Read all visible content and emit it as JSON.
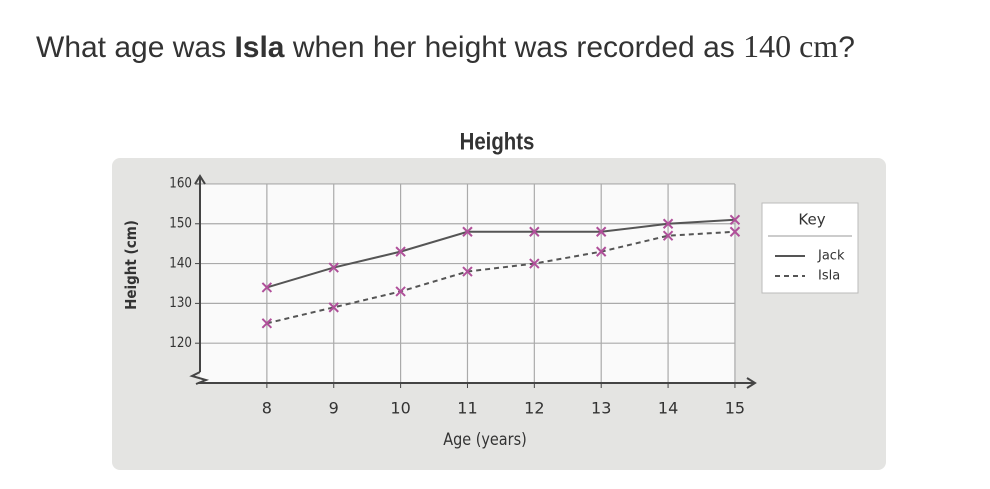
{
  "question": {
    "before": "What age was ",
    "name": "Isla",
    "after": " when her height was recorded as ",
    "math": "140 cm",
    "end": "?"
  },
  "chart_data": {
    "type": "line",
    "title": "Heights",
    "x_label": "Age (years)",
    "y_label": "Height (cm)",
    "x": [
      8,
      9,
      10,
      11,
      12,
      13,
      14,
      15
    ],
    "series": [
      {
        "name": "Jack",
        "color": "#555555",
        "marker_color": "#b0509a",
        "style": "solid",
        "values": [
          134,
          139,
          143,
          148,
          148,
          148,
          150,
          151
        ]
      },
      {
        "name": "Isla",
        "color": "#555555",
        "marker_color": "#b0509a",
        "style": "dashed",
        "values": [
          125,
          129,
          133,
          138,
          140,
          143,
          147,
          148
        ]
      }
    ],
    "xlim": [
      7,
      15.3
    ],
    "ylim": [
      110,
      162
    ],
    "xticks": [
      8,
      9,
      10,
      11,
      12,
      13,
      14,
      15
    ],
    "yticks": [
      120,
      130,
      140,
      150,
      160
    ],
    "grid": true,
    "legend_title": "Key",
    "legend": "right"
  }
}
